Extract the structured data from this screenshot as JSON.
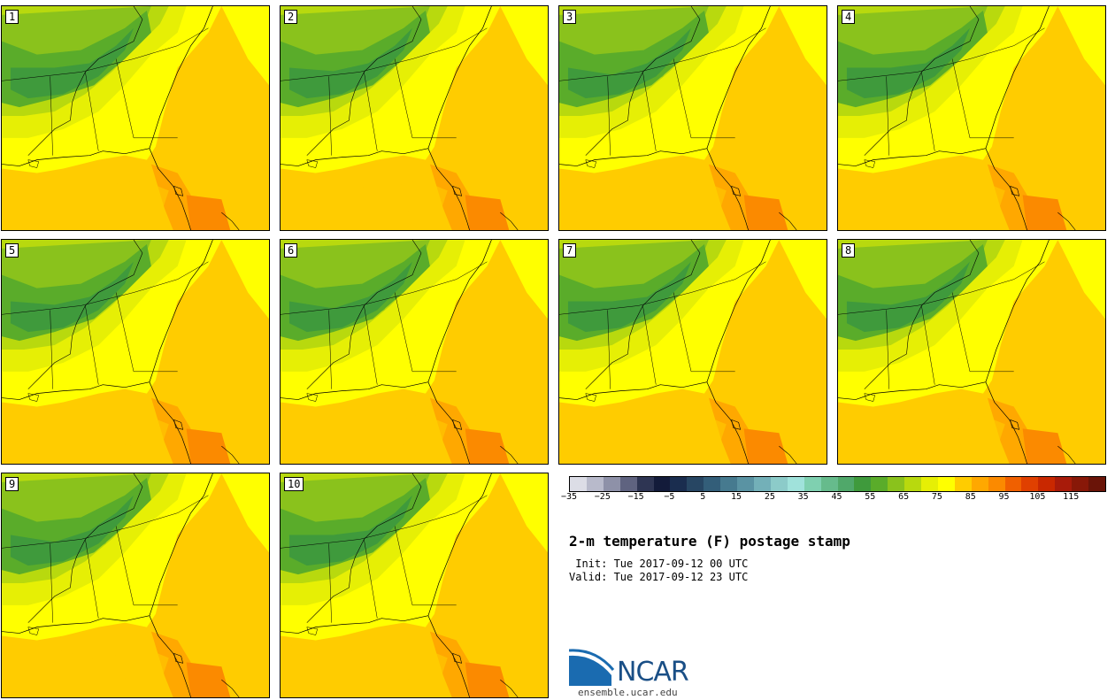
{
  "panels": [
    {
      "label": "1",
      "variant": 0
    },
    {
      "label": "2",
      "variant": 1
    },
    {
      "label": "3",
      "variant": 2
    },
    {
      "label": "4",
      "variant": 3
    },
    {
      "label": "5",
      "variant": 4
    },
    {
      "label": "6",
      "variant": 5
    },
    {
      "label": "7",
      "variant": 6
    },
    {
      "label": "8",
      "variant": 7
    },
    {
      "label": "9",
      "variant": 8
    },
    {
      "label": "10",
      "variant": 9
    }
  ],
  "colorbar": {
    "colors": [
      "#dcdde6",
      "#b8bacb",
      "#8e91a8",
      "#5f6380",
      "#2e3553",
      "#131b3a",
      "#1a2d4f",
      "#274663",
      "#335e79",
      "#467a8f",
      "#5a93a3",
      "#73b0b8",
      "#8ccbc9",
      "#a0e2db",
      "#7fd0b0",
      "#66bb8c",
      "#50a86a",
      "#3f9a3c",
      "#5aac2a",
      "#8ac21c",
      "#b8d90e",
      "#e6ef05",
      "#ffff00",
      "#ffcc00",
      "#ffa800",
      "#fb8a00",
      "#f06000",
      "#e04000",
      "#c92800",
      "#a81b0a",
      "#881808",
      "#6a1408"
    ],
    "tick_labels": [
      "−35",
      "−25",
      "−15",
      "−5",
      "5",
      "15",
      "25",
      "35",
      "45",
      "55",
      "65",
      "75",
      "85",
      "95",
      "105",
      "115"
    ]
  },
  "title": "2-m temperature (F) postage stamp",
  "init_line": " Init: Tue 2017-09-12 00 UTC",
  "valid_line": "Valid: Tue 2017-09-12 23 UTC",
  "logo": {
    "name": "NCAR",
    "url": "ensemble.ucar.edu",
    "brand_color": "#1a4f86"
  }
}
